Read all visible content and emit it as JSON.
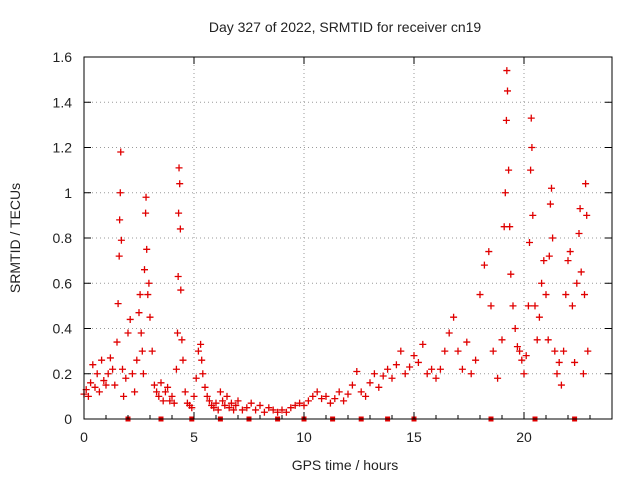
{
  "chart_data": {
    "type": "scatter",
    "title": "Day 327 of 2022, SRMTID for receiver cn19",
    "xlabel": "GPS time / hours",
    "ylabel": "SRMTID / TECUs",
    "xlim": [
      0,
      24
    ],
    "ylim": [
      0,
      1.6
    ],
    "x_ticks": [
      0,
      5,
      10,
      15,
      20
    ],
    "x_tick_labels": [
      "0",
      "5",
      "10",
      "15",
      "20"
    ],
    "y_ticks": [
      0,
      0.2,
      0.4,
      0.6,
      0.8,
      1.0,
      1.2,
      1.4,
      1.6
    ],
    "y_tick_labels": [
      "0",
      "0.2",
      "0.4",
      "0.6",
      "0.8",
      "1",
      "1.2",
      "1.4",
      "1.6"
    ],
    "grid": true,
    "marker": "plus",
    "color": "#e00000",
    "x_axis_markers": [
      2.0,
      3.5,
      4.9,
      6.2,
      7.5,
      8.8,
      10.0,
      11.3,
      12.6,
      13.8,
      15.0,
      18.5,
      20.5,
      22.3
    ],
    "series": [
      {
        "name": "SRMTID",
        "points": [
          [
            0.0,
            0.11
          ],
          [
            0.1,
            0.13
          ],
          [
            0.2,
            0.1
          ],
          [
            0.3,
            0.16
          ],
          [
            0.4,
            0.24
          ],
          [
            0.5,
            0.14
          ],
          [
            0.6,
            0.2
          ],
          [
            0.7,
            0.12
          ],
          [
            0.8,
            0.26
          ],
          [
            0.9,
            0.17
          ],
          [
            1.0,
            0.15
          ],
          [
            1.1,
            0.2
          ],
          [
            1.2,
            0.27
          ],
          [
            1.3,
            0.22
          ],
          [
            1.4,
            0.15
          ],
          [
            1.5,
            0.34
          ],
          [
            1.55,
            0.51
          ],
          [
            1.6,
            0.72
          ],
          [
            1.62,
            0.88
          ],
          [
            1.65,
            1.0
          ],
          [
            1.67,
            1.18
          ],
          [
            1.7,
            0.79
          ],
          [
            1.75,
            0.22
          ],
          [
            1.8,
            0.1
          ],
          [
            1.9,
            0.18
          ],
          [
            2.0,
            0.38
          ],
          [
            2.1,
            0.44
          ],
          [
            2.2,
            0.2
          ],
          [
            2.3,
            0.12
          ],
          [
            2.4,
            0.26
          ],
          [
            2.5,
            0.47
          ],
          [
            2.55,
            0.55
          ],
          [
            2.6,
            0.38
          ],
          [
            2.65,
            0.3
          ],
          [
            2.7,
            0.2
          ],
          [
            2.75,
            0.66
          ],
          [
            2.8,
            0.91
          ],
          [
            2.82,
            0.98
          ],
          [
            2.85,
            0.75
          ],
          [
            2.9,
            0.55
          ],
          [
            2.95,
            0.6
          ],
          [
            3.0,
            0.45
          ],
          [
            3.1,
            0.3
          ],
          [
            3.2,
            0.15
          ],
          [
            3.3,
            0.12
          ],
          [
            3.4,
            0.1
          ],
          [
            3.5,
            0.16
          ],
          [
            3.6,
            0.08
          ],
          [
            3.7,
            0.12
          ],
          [
            3.8,
            0.14
          ],
          [
            3.9,
            0.08
          ],
          [
            4.0,
            0.1
          ],
          [
            4.1,
            0.07
          ],
          [
            4.2,
            0.22
          ],
          [
            4.25,
            0.38
          ],
          [
            4.28,
            0.63
          ],
          [
            4.3,
            0.91
          ],
          [
            4.32,
            1.11
          ],
          [
            4.35,
            1.04
          ],
          [
            4.38,
            0.84
          ],
          [
            4.4,
            0.57
          ],
          [
            4.45,
            0.35
          ],
          [
            4.5,
            0.26
          ],
          [
            4.6,
            0.12
          ],
          [
            4.7,
            0.07
          ],
          [
            4.8,
            0.06
          ],
          [
            4.9,
            0.05
          ],
          [
            5.0,
            0.1
          ],
          [
            5.1,
            0.18
          ],
          [
            5.2,
            0.3
          ],
          [
            5.3,
            0.33
          ],
          [
            5.35,
            0.26
          ],
          [
            5.4,
            0.2
          ],
          [
            5.5,
            0.14
          ],
          [
            5.6,
            0.1
          ],
          [
            5.7,
            0.08
          ],
          [
            5.8,
            0.06
          ],
          [
            5.9,
            0.05
          ],
          [
            6.0,
            0.07
          ],
          [
            6.1,
            0.04
          ],
          [
            6.2,
            0.12
          ],
          [
            6.3,
            0.08
          ],
          [
            6.4,
            0.06
          ],
          [
            6.5,
            0.1
          ],
          [
            6.6,
            0.05
          ],
          [
            6.7,
            0.07
          ],
          [
            6.8,
            0.04
          ],
          [
            6.9,
            0.06
          ],
          [
            7.0,
            0.08
          ],
          [
            7.2,
            0.04
          ],
          [
            7.4,
            0.05
          ],
          [
            7.6,
            0.07
          ],
          [
            7.8,
            0.04
          ],
          [
            8.0,
            0.06
          ],
          [
            8.2,
            0.03
          ],
          [
            8.4,
            0.05
          ],
          [
            8.6,
            0.04
          ],
          [
            8.8,
            0.03
          ],
          [
            9.0,
            0.04
          ],
          [
            9.2,
            0.03
          ],
          [
            9.4,
            0.05
          ],
          [
            9.6,
            0.06
          ],
          [
            9.8,
            0.07
          ],
          [
            10.0,
            0.06
          ],
          [
            10.2,
            0.08
          ],
          [
            10.4,
            0.1
          ],
          [
            10.6,
            0.12
          ],
          [
            10.8,
            0.09
          ],
          [
            11.0,
            0.1
          ],
          [
            11.2,
            0.07
          ],
          [
            11.4,
            0.09
          ],
          [
            11.6,
            0.12
          ],
          [
            11.8,
            0.08
          ],
          [
            12.0,
            0.11
          ],
          [
            12.2,
            0.15
          ],
          [
            12.4,
            0.21
          ],
          [
            12.6,
            0.12
          ],
          [
            12.8,
            0.1
          ],
          [
            13.0,
            0.16
          ],
          [
            13.2,
            0.2
          ],
          [
            13.4,
            0.14
          ],
          [
            13.6,
            0.19
          ],
          [
            13.8,
            0.22
          ],
          [
            14.0,
            0.18
          ],
          [
            14.2,
            0.24
          ],
          [
            14.4,
            0.3
          ],
          [
            14.6,
            0.2
          ],
          [
            14.8,
            0.23
          ],
          [
            15.0,
            0.28
          ],
          [
            15.2,
            0.25
          ],
          [
            15.4,
            0.33
          ],
          [
            15.6,
            0.2
          ],
          [
            15.8,
            0.22
          ],
          [
            16.0,
            0.18
          ],
          [
            16.2,
            0.22
          ],
          [
            16.4,
            0.3
          ],
          [
            16.6,
            0.38
          ],
          [
            16.8,
            0.45
          ],
          [
            17.0,
            0.3
          ],
          [
            17.2,
            0.22
          ],
          [
            17.4,
            0.34
          ],
          [
            17.6,
            0.2
          ],
          [
            17.8,
            0.26
          ],
          [
            18.0,
            0.55
          ],
          [
            18.2,
            0.68
          ],
          [
            18.4,
            0.74
          ],
          [
            18.5,
            0.5
          ],
          [
            18.6,
            0.3
          ],
          [
            18.8,
            0.18
          ],
          [
            19.0,
            0.35
          ],
          [
            19.1,
            0.85
          ],
          [
            19.15,
            1.0
          ],
          [
            19.2,
            1.32
          ],
          [
            19.22,
            1.54
          ],
          [
            19.25,
            1.45
          ],
          [
            19.3,
            1.1
          ],
          [
            19.35,
            0.85
          ],
          [
            19.4,
            0.64
          ],
          [
            19.5,
            0.5
          ],
          [
            19.6,
            0.4
          ],
          [
            19.7,
            0.32
          ],
          [
            19.8,
            0.3
          ],
          [
            19.9,
            0.26
          ],
          [
            20.0,
            0.2
          ],
          [
            20.1,
            0.28
          ],
          [
            20.2,
            0.5
          ],
          [
            20.25,
            0.78
          ],
          [
            20.3,
            1.1
          ],
          [
            20.33,
            1.33
          ],
          [
            20.36,
            1.2
          ],
          [
            20.4,
            0.9
          ],
          [
            20.5,
            0.5
          ],
          [
            20.6,
            0.35
          ],
          [
            20.7,
            0.45
          ],
          [
            20.8,
            0.6
          ],
          [
            20.9,
            0.7
          ],
          [
            21.0,
            0.55
          ],
          [
            21.1,
            0.35
          ],
          [
            21.15,
            0.72
          ],
          [
            21.2,
            0.95
          ],
          [
            21.25,
            1.02
          ],
          [
            21.3,
            0.8
          ],
          [
            21.4,
            0.3
          ],
          [
            21.5,
            0.2
          ],
          [
            21.6,
            0.25
          ],
          [
            21.7,
            0.15
          ],
          [
            21.8,
            0.3
          ],
          [
            21.9,
            0.55
          ],
          [
            22.0,
            0.7
          ],
          [
            22.1,
            0.74
          ],
          [
            22.2,
            0.5
          ],
          [
            22.3,
            0.25
          ],
          [
            22.4,
            0.6
          ],
          [
            22.5,
            0.82
          ],
          [
            22.55,
            0.93
          ],
          [
            22.6,
            0.65
          ],
          [
            22.7,
            0.2
          ],
          [
            22.75,
            0.55
          ],
          [
            22.8,
            1.04
          ],
          [
            22.85,
            0.9
          ],
          [
            22.9,
            0.3
          ]
        ]
      }
    ]
  }
}
